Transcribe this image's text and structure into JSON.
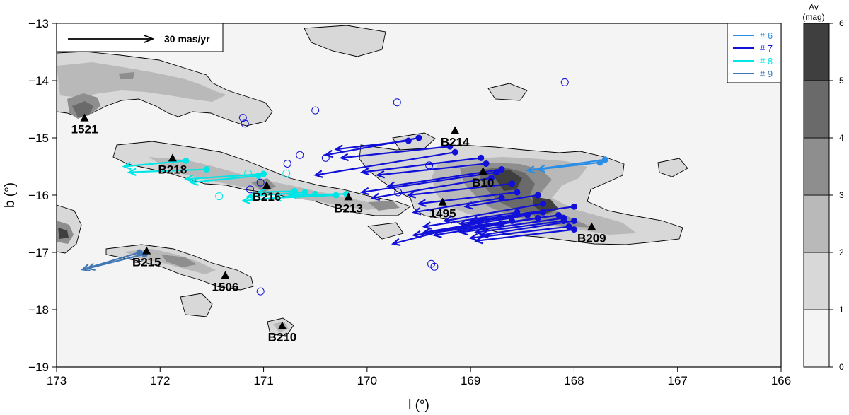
{
  "chart_data": {
    "type": "scatter",
    "xlabel": "l (°)",
    "ylabel": "b (°)",
    "xlim": [
      173,
      166
    ],
    "ylim": [
      -19,
      -13
    ],
    "x_ticks": [
      "173",
      "172",
      "171",
      "170",
      "169",
      "168",
      "167",
      "166"
    ],
    "y_ticks": [
      "−13",
      "−14",
      "−15",
      "−16",
      "−17",
      "−18",
      "−19"
    ],
    "scale_bar_label": "30 mas/yr",
    "colorbar": {
      "title": "Av",
      "unit": "(mag)",
      "ticks": [
        "0",
        "1",
        "2",
        "3",
        "4",
        "5",
        "6"
      ],
      "colors": [
        "#f4f4f4",
        "#d8d8d8",
        "#b9b9b9",
        "#8e8e8e",
        "#6a6a6a",
        "#3f3f3f"
      ]
    },
    "legend": [
      {
        "label": "# 6",
        "color": "#2a8ee6"
      },
      {
        "label": "# 7",
        "color": "#1010d8"
      },
      {
        "label": "# 8",
        "color": "#00e6e6"
      },
      {
        "label": "# 9",
        "color": "#4177b5"
      }
    ],
    "clouds": [
      {
        "label": "1521",
        "l": 172.73,
        "b": -14.65
      },
      {
        "label": "B218",
        "l": 171.88,
        "b": -15.35
      },
      {
        "label": "B216",
        "l": 170.97,
        "b": -15.83
      },
      {
        "label": "B213",
        "l": 170.18,
        "b": -16.03
      },
      {
        "label": "B214",
        "l": 169.15,
        "b": -14.87
      },
      {
        "label": "B10",
        "l": 168.88,
        "b": -15.58
      },
      {
        "label": "1495",
        "l": 169.27,
        "b": -16.12
      },
      {
        "label": "B209",
        "l": 167.83,
        "b": -16.55
      },
      {
        "label": "B215",
        "l": 172.13,
        "b": -16.97
      },
      {
        "label": "1506",
        "l": 171.37,
        "b": -17.4
      },
      {
        "label": "B210",
        "l": 170.82,
        "b": -18.28
      }
    ],
    "series": [
      {
        "name": "# 6",
        "color": "#2a8ee6",
        "vectors": [
          [
            167.7,
            -15.38,
            168.45,
            -15.57
          ],
          [
            167.75,
            -15.43,
            168.35,
            -15.55
          ]
        ]
      },
      {
        "name": "# 7",
        "color": "#1010d8",
        "vectors": [
          [
            169.5,
            -15.0,
            170.4,
            -15.3
          ],
          [
            169.6,
            -15.05,
            170.3,
            -15.2
          ],
          [
            169.2,
            -15.15,
            170.25,
            -15.35
          ],
          [
            169.15,
            -15.25,
            170.5,
            -15.65
          ],
          [
            168.9,
            -15.35,
            170.05,
            -15.6
          ],
          [
            168.85,
            -15.45,
            169.9,
            -15.65
          ],
          [
            168.7,
            -15.55,
            169.8,
            -15.85
          ],
          [
            168.75,
            -15.6,
            170.05,
            -15.95
          ],
          [
            168.8,
            -15.7,
            169.95,
            -16.05
          ],
          [
            168.6,
            -15.8,
            169.6,
            -16.0
          ],
          [
            168.55,
            -15.95,
            169.5,
            -16.15
          ],
          [
            168.7,
            -16.05,
            169.55,
            -16.3
          ],
          [
            168.35,
            -16.0,
            169.05,
            -16.2
          ],
          [
            168.3,
            -16.15,
            169.25,
            -16.45
          ],
          [
            168.0,
            -16.2,
            169.0,
            -16.45
          ],
          [
            168.55,
            -16.3,
            169.45,
            -16.55
          ],
          [
            168.45,
            -16.35,
            169.45,
            -16.65
          ],
          [
            168.3,
            -16.3,
            169.1,
            -16.5
          ],
          [
            168.35,
            -16.4,
            169.35,
            -16.7
          ],
          [
            168.6,
            -16.45,
            169.45,
            -16.65
          ],
          [
            168.15,
            -16.35,
            168.95,
            -16.55
          ],
          [
            168.1,
            -16.45,
            168.95,
            -16.65
          ],
          [
            168.05,
            -16.55,
            169.0,
            -16.75
          ],
          [
            168.0,
            -16.6,
            168.95,
            -16.8
          ],
          [
            168.7,
            -16.5,
            169.55,
            -16.7
          ],
          [
            168.0,
            -16.45,
            168.9,
            -16.7
          ],
          [
            168.1,
            -16.4,
            169.1,
            -16.65
          ],
          [
            168.9,
            -16.45,
            169.75,
            -16.85
          ]
        ]
      },
      {
        "name": "# 8",
        "color": "#00e6e6",
        "vectors": [
          [
            171.75,
            -15.4,
            172.35,
            -15.5
          ],
          [
            171.55,
            -15.55,
            172.3,
            -15.6
          ],
          [
            171.0,
            -15.63,
            171.75,
            -15.72
          ],
          [
            171.05,
            -15.66,
            171.7,
            -15.78
          ],
          [
            170.6,
            -15.95,
            171.15,
            -16.02
          ],
          [
            170.7,
            -15.93,
            171.05,
            -15.95
          ],
          [
            170.5,
            -15.98,
            171.2,
            -16.1
          ],
          [
            170.3,
            -16.0,
            170.9,
            -16.05
          ],
          [
            170.2,
            -15.98,
            170.75,
            -16.0
          ]
        ]
      },
      {
        "name": "# 9",
        "color": "#4177b5",
        "vectors": [
          [
            172.2,
            -17.0,
            172.75,
            -17.3
          ],
          [
            172.15,
            -17.03,
            172.7,
            -17.28
          ]
        ]
      }
    ],
    "open_circles": [
      {
        "l": 168.09,
        "b": -14.03,
        "color": "#1010d8"
      },
      {
        "l": 169.71,
        "b": -14.38,
        "color": "#1010d8"
      },
      {
        "l": 170.5,
        "b": -14.52,
        "color": "#1010d8"
      },
      {
        "l": 171.2,
        "b": -14.65,
        "color": "#1010d8"
      },
      {
        "l": 171.18,
        "b": -14.75,
        "color": "#1010d8"
      },
      {
        "l": 170.65,
        "b": -15.3,
        "color": "#1010d8"
      },
      {
        "l": 170.4,
        "b": -15.35,
        "color": "#1010d8"
      },
      {
        "l": 170.77,
        "b": -15.45,
        "color": "#1010d8"
      },
      {
        "l": 169.4,
        "b": -15.48,
        "color": "#1010d8"
      },
      {
        "l": 171.15,
        "b": -15.62,
        "color": "#00e6e6"
      },
      {
        "l": 170.78,
        "b": -15.62,
        "color": "#00e6e6"
      },
      {
        "l": 171.03,
        "b": -15.78,
        "color": "#1010d8"
      },
      {
        "l": 171.13,
        "b": -15.9,
        "color": "#1010d8"
      },
      {
        "l": 171.43,
        "b": -16.02,
        "color": "#00e6e6"
      },
      {
        "l": 169.7,
        "b": -15.95,
        "color": "#1010d8"
      },
      {
        "l": 169.38,
        "b": -17.2,
        "color": "#1010d8"
      },
      {
        "l": 169.35,
        "b": -17.25,
        "color": "#1010d8"
      },
      {
        "l": 171.03,
        "b": -17.68,
        "color": "#1010d8"
      }
    ]
  }
}
